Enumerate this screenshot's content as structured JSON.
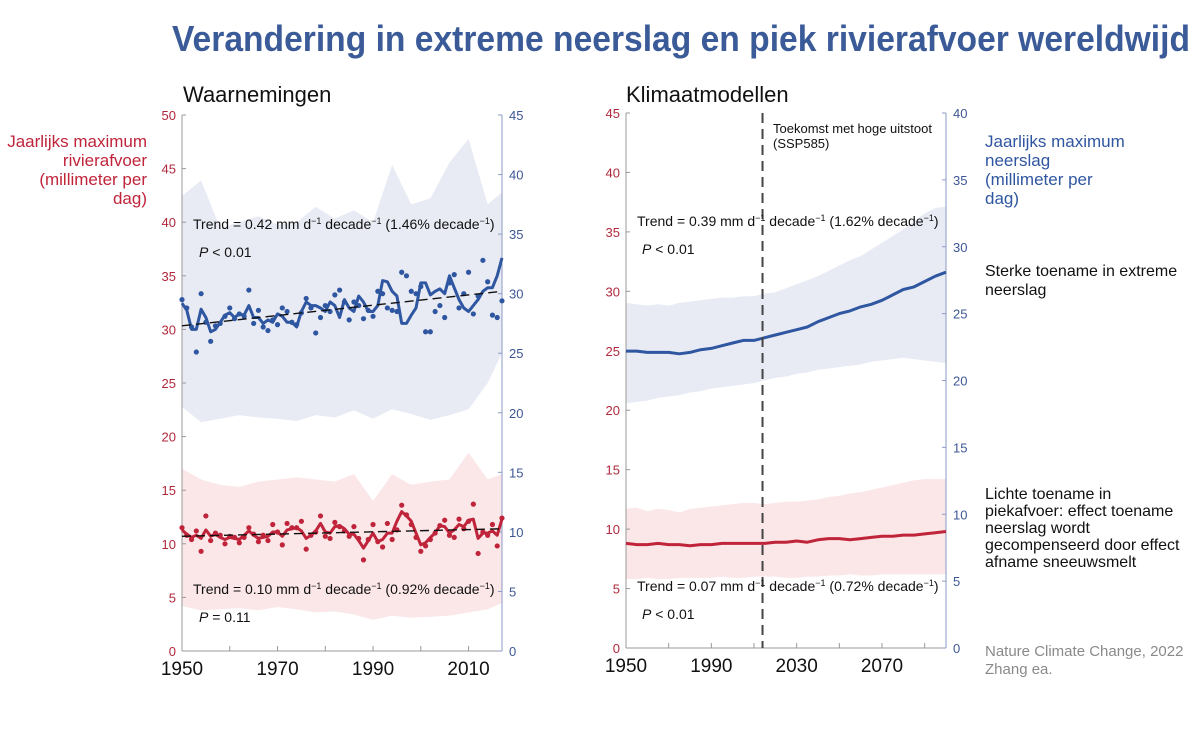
{
  "title": "Verandering in extreme neerslag en piek rivierafvoer wereldwijd",
  "colors": {
    "title": "#3a5a98",
    "precip": "#2f56a0",
    "discharge": "#c0243a",
    "precip_band": "#e8ebf4",
    "discharge_band": "#fbe6e8"
  },
  "left_axis_label": [
    "Jaarlijks maximum",
    "rivierafvoer",
    "(millimeter per",
    "dag)"
  ],
  "right_axis_label": [
    "Jaarlijks maximum",
    "neerslag",
    "(millimeter per",
    "dag)"
  ],
  "note_precip": [
    "Sterke toename in extreme",
    "neerslag"
  ],
  "note_discharge": [
    "Lichte toename in",
    "piekafvoer: effect toename",
    "neerslag wordt",
    "gecompenseerd door effect",
    "afname sneeuwsmelt"
  ],
  "source": [
    "Nature Climate Change, 2022",
    "Zhang ea."
  ],
  "chart_data": [
    {
      "type": "line",
      "title": "Waarnemingen",
      "xlim": [
        1950,
        2017
      ],
      "x_ticks": [
        1950,
        1960,
        1970,
        1980,
        1990,
        2000,
        2010
      ],
      "x_tick_labels": [
        "1950",
        "1970",
        "1990",
        "2010"
      ],
      "ylim_left": [
        0,
        50
      ],
      "y_ticks_left": [
        "0",
        "5",
        "10",
        "15",
        "20",
        "25",
        "30",
        "35",
        "40",
        "45",
        "50"
      ],
      "ylim_right": [
        0,
        45
      ],
      "y_ticks_right": [
        "0",
        "5",
        "10",
        "15",
        "20",
        "25",
        "30",
        "35",
        "40",
        "45"
      ],
      "grid": false,
      "years_start": 1950,
      "precip": {
        "axis": "right",
        "smoothed": [
          29.2,
          28.6,
          27.0,
          27.0,
          28.7,
          28.0,
          26.8,
          27.0,
          27.6,
          28.2,
          28.4,
          28.0,
          28.3,
          28.2,
          29.0,
          28.0,
          28.0,
          27.5,
          27.8,
          27.6,
          28.3,
          28.1,
          27.6,
          27.6,
          27.2,
          28.5,
          29.3,
          29.0,
          29.0,
          28.8,
          28.5,
          29.3,
          29.0,
          28.0,
          29.5,
          28.8,
          28.5,
          29.8,
          29.3,
          28.5,
          28.5,
          29.0,
          31.1,
          31.0,
          30.2,
          29.8,
          27.5,
          27.5,
          28.2,
          28.8,
          30.9,
          30.9,
          29.9,
          30.2,
          30.4,
          30.0,
          31.5,
          30.5,
          29.5,
          28.8,
          28.5,
          29.0,
          29.5,
          30.2,
          30.5,
          30.5,
          31.5,
          33.0
        ],
        "observed": [
          29.5,
          28.8,
          27.2,
          25.1,
          30.0,
          27.6,
          26.0,
          27.3,
          27.5,
          28.1,
          28.8,
          27.9,
          28.3,
          28.1,
          30.3,
          27.5,
          28.6,
          27.2,
          26.9,
          27.8,
          27.4,
          28.8,
          28.5,
          27.6,
          27.4,
          28.4,
          29.6,
          28.8,
          26.7,
          28.0,
          29.0,
          28.5,
          29.9,
          30.3,
          29.3,
          27.8,
          29.3,
          29.0,
          27.9,
          28.6,
          28.1,
          30.2,
          30.0,
          28.8,
          28.6,
          28.5,
          31.8,
          31.5,
          30.2,
          30.0,
          30.6,
          26.8,
          26.8,
          28.5,
          29.0,
          28.0,
          30.9,
          31.6,
          28.8,
          30.0,
          31.8,
          28.3,
          29.8,
          32.8,
          31.0,
          28.2,
          28.0,
          29.4
        ],
        "trend_line": [
          27.3,
          30.2
        ],
        "band_years": [
          1950,
          1954,
          1958,
          1962,
          1966,
          1970,
          1974,
          1978,
          1982,
          1986,
          1990,
          1994,
          1998,
          2002,
          2006,
          2010,
          2014,
          2017
        ],
        "band_upper": [
          38.2,
          39.5,
          35.5,
          36.0,
          36.5,
          35.8,
          36.0,
          37.3,
          36.3,
          37.0,
          36.0,
          40.8,
          37.5,
          38.0,
          41.0,
          43.0,
          37.5,
          38.5
        ],
        "band_lower": [
          20.5,
          19.2,
          19.5,
          19.8,
          19.6,
          19.5,
          19.3,
          19.8,
          19.6,
          20.2,
          19.5,
          20.3,
          19.9,
          19.4,
          19.8,
          20.3,
          22.5,
          25.0
        ],
        "trend_text": [
          "Trend = 0.42 mm d",
          "−1",
          " decade",
          "−1",
          " (1.46% decade",
          "−1",
          ")"
        ],
        "p_text": [
          "P",
          " < 0.01"
        ]
      },
      "discharge": {
        "axis": "left",
        "smoothed": [
          11.3,
          10.9,
          10.6,
          10.8,
          10.5,
          11.3,
          10.7,
          10.9,
          10.6,
          10.4,
          10.6,
          10.5,
          10.4,
          10.8,
          11.2,
          10.8,
          10.5,
          10.6,
          10.7,
          11.1,
          11.1,
          10.7,
          11.3,
          11.4,
          11.5,
          11.2,
          10.5,
          10.8,
          11.2,
          11.9,
          11.1,
          11.0,
          11.6,
          11.7,
          11.4,
          10.9,
          10.9,
          10.3,
          9.6,
          10.3,
          11.0,
          10.2,
          10.4,
          11.0,
          11.0,
          12.1,
          13.0,
          12.6,
          12.1,
          11.0,
          9.9,
          10.1,
          10.6,
          11.0,
          11.7,
          11.6,
          11.0,
          11.3,
          11.8,
          11.6,
          12.2,
          12.3,
          10.5,
          11.0,
          11.0,
          11.2,
          10.8,
          12.3
        ],
        "observed": [
          11.5,
          10.8,
          10.4,
          11.2,
          9.3,
          12.6,
          10.3,
          11.0,
          10.8,
          10.0,
          10.7,
          10.6,
          10.1,
          10.6,
          11.5,
          10.9,
          10.2,
          10.8,
          10.3,
          11.8,
          11.1,
          9.9,
          11.9,
          11.5,
          11.5,
          12.1,
          9.5,
          10.8,
          11.1,
          12.6,
          10.7,
          10.5,
          12.0,
          11.6,
          11.2,
          10.7,
          11.6,
          10.5,
          8.5,
          10.4,
          11.8,
          10.2,
          9.7,
          11.9,
          10.4,
          11.3,
          13.6,
          12.7,
          11.8,
          10.6,
          9.3,
          9.8,
          10.4,
          11.0,
          11.7,
          12.2,
          10.8,
          10.6,
          12.3,
          11.4,
          12.1,
          13.7,
          9.1,
          11.1,
          10.8,
          11.8,
          9.8,
          12.4
        ],
        "trend_line": [
          10.7,
          11.4
        ],
        "band_years": [
          1950,
          1954,
          1958,
          1962,
          1966,
          1970,
          1974,
          1978,
          1982,
          1986,
          1990,
          1994,
          1998,
          2002,
          2006,
          2010,
          2014,
          2017
        ],
        "band_upper": [
          17.0,
          16.0,
          15.5,
          15.3,
          15.8,
          16.0,
          16.2,
          16.0,
          15.8,
          16.5,
          14.0,
          16.5,
          15.5,
          15.8,
          16.0,
          18.5,
          16.0,
          16.5
        ],
        "band_lower": [
          4.2,
          3.8,
          3.9,
          4.0,
          3.8,
          4.1,
          3.9,
          3.6,
          3.7,
          3.4,
          2.9,
          3.3,
          3.1,
          3.2,
          3.3,
          3.6,
          3.9,
          4.5
        ],
        "trend_text": [
          "Trend = 0.10 mm d",
          "−1",
          " decade",
          "−1",
          " (0.92% decade",
          "−1",
          ")"
        ],
        "p_text": [
          "P",
          " = 0.11"
        ]
      }
    },
    {
      "type": "line",
      "title": "Klimaatmodellen",
      "xlim": [
        1950,
        2100
      ],
      "x_ticks": [
        1950,
        1970,
        1990,
        2010,
        2030,
        2050,
        2070,
        2090
      ],
      "x_tick_labels": [
        "1950",
        "1990",
        "2030",
        "2070"
      ],
      "ylim_left": [
        0,
        45
      ],
      "y_ticks_left": [
        "0",
        "5",
        "10",
        "15",
        "20",
        "25",
        "30",
        "35",
        "40",
        "45"
      ],
      "ylim_right": [
        0,
        40
      ],
      "y_ticks_right": [
        "0",
        "5",
        "10",
        "15",
        "20",
        "25",
        "30",
        "35",
        "40"
      ],
      "grid": false,
      "divider_year": 2014,
      "divider_label": [
        "Toekomst met hoge uitstoot",
        "(SSP585)"
      ],
      "years": [
        1950,
        1955,
        1960,
        1965,
        1970,
        1975,
        1980,
        1985,
        1990,
        1995,
        2000,
        2005,
        2010,
        2015,
        2020,
        2025,
        2030,
        2035,
        2040,
        2045,
        2050,
        2055,
        2060,
        2065,
        2070,
        2075,
        2080,
        2085,
        2090,
        2095,
        2100
      ],
      "precip": {
        "axis": "right",
        "mean": [
          22.2,
          22.2,
          22.1,
          22.1,
          22.1,
          22.0,
          22.1,
          22.3,
          22.4,
          22.6,
          22.8,
          23.0,
          23.0,
          23.2,
          23.4,
          23.6,
          23.8,
          24.0,
          24.4,
          24.7,
          25.0,
          25.2,
          25.5,
          25.7,
          26.0,
          26.4,
          26.8,
          27.0,
          27.4,
          27.8,
          28.1
        ],
        "band_upper": [
          25.8,
          25.7,
          25.6,
          25.7,
          25.6,
          25.8,
          25.9,
          26.0,
          26.1,
          26.2,
          26.2,
          26.3,
          26.3,
          26.5,
          26.6,
          26.9,
          27.2,
          27.5,
          27.8,
          28.2,
          28.6,
          29.0,
          29.3,
          29.8,
          30.3,
          30.8,
          31.3,
          31.9,
          32.5,
          32.9,
          33.0
        ],
        "band_lower": [
          18.3,
          18.4,
          18.5,
          18.7,
          18.8,
          18.9,
          19.1,
          19.2,
          19.4,
          19.5,
          19.6,
          19.7,
          19.8,
          20.0,
          20.2,
          20.3,
          20.5,
          20.6,
          20.8,
          20.9,
          21.0,
          21.1,
          21.2,
          21.4,
          21.5,
          21.6,
          21.7,
          21.6,
          21.5,
          21.4,
          21.3
        ],
        "trend_text": [
          "Trend = 0.39 mm d",
          "−1",
          " decade",
          "−1",
          " (1.62% decade",
          "−1",
          ")"
        ],
        "p_text": [
          "P",
          " < 0.01"
        ]
      },
      "discharge": {
        "axis": "left",
        "mean": [
          8.8,
          8.7,
          8.7,
          8.8,
          8.7,
          8.7,
          8.6,
          8.7,
          8.7,
          8.8,
          8.8,
          8.8,
          8.8,
          8.8,
          8.9,
          8.9,
          9.0,
          8.9,
          9.1,
          9.2,
          9.2,
          9.1,
          9.2,
          9.3,
          9.4,
          9.4,
          9.5,
          9.5,
          9.6,
          9.7,
          9.8
        ],
        "band_upper": [
          11.7,
          11.8,
          11.5,
          11.7,
          11.6,
          11.4,
          11.7,
          11.8,
          11.9,
          12.0,
          12.1,
          12.2,
          12.2,
          12.1,
          12.2,
          12.3,
          12.3,
          12.4,
          12.5,
          12.7,
          12.8,
          13.0,
          13.1,
          13.3,
          13.5,
          13.7,
          13.9,
          14.1,
          14.2,
          14.2,
          14.2
        ],
        "band_lower": [
          5.8,
          5.8,
          5.9,
          5.8,
          5.8,
          5.9,
          5.9,
          5.9,
          5.9,
          6.0,
          5.9,
          5.9,
          6.0,
          6.0,
          6.0,
          5.9,
          5.9,
          6.0,
          6.0,
          6.1,
          6.1,
          6.2,
          6.1,
          6.1,
          6.2,
          6.2,
          6.2,
          6.2,
          6.2,
          6.2,
          6.2
        ],
        "trend_text": [
          "Trend = 0.07 mm d",
          "−1",
          " decade",
          "−1",
          "  (0.72% decade",
          "−1",
          ")"
        ],
        "p_text": [
          "P",
          " < 0.01"
        ]
      }
    }
  ]
}
